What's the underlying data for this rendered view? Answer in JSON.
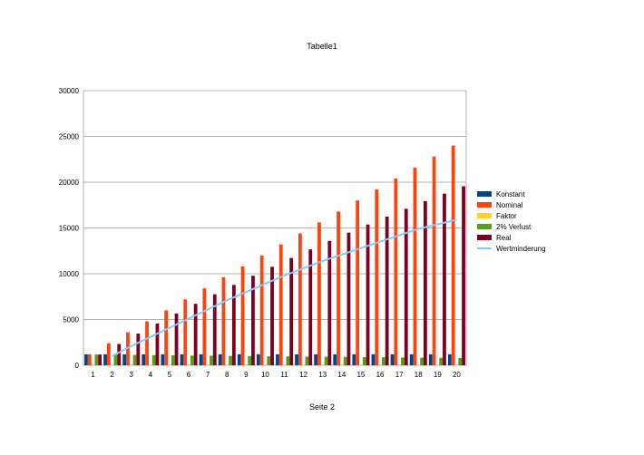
{
  "page": {
    "header": "Tabelle1",
    "footer": "Seite 2"
  },
  "chart_data": {
    "type": "bar",
    "title": "Tabelle1",
    "xlabel": "",
    "ylabel": "",
    "ylim": [
      0,
      30000
    ],
    "yticks": [
      0,
      5000,
      10000,
      15000,
      20000,
      25000,
      30000
    ],
    "grid": true,
    "legend_position": "right",
    "categories": [
      "1",
      "2",
      "3",
      "4",
      "5",
      "6",
      "7",
      "8",
      "9",
      "10",
      "11",
      "12",
      "13",
      "14",
      "15",
      "16",
      "17",
      "18",
      "19",
      "20"
    ],
    "series": [
      {
        "name": "Konstant",
        "kind": "bar",
        "color": "#004586",
        "values": [
          1200,
          1200,
          1200,
          1200,
          1200,
          1200,
          1200,
          1200,
          1200,
          1200,
          1200,
          1200,
          1200,
          1200,
          1200,
          1200,
          1200,
          1200,
          1200,
          1200
        ]
      },
      {
        "name": "Nominal",
        "kind": "bar",
        "color": "#ff420e",
        "values": [
          1200,
          2400,
          3600,
          4800,
          6000,
          7200,
          8400,
          9600,
          10800,
          12000,
          13200,
          14400,
          15600,
          16800,
          18000,
          19200,
          20400,
          21600,
          22800,
          24000
        ]
      },
      {
        "name": "Faktor",
        "kind": "bar",
        "color": "#ffd320",
        "values": [
          0,
          0,
          0,
          0,
          0,
          0,
          0,
          0,
          0,
          0,
          0,
          0,
          0,
          0,
          0,
          0,
          0,
          0,
          0,
          0
        ]
      },
      {
        "name": "2% Verlust",
        "kind": "bar",
        "color": "#579d1c",
        "values": [
          1176,
          1153,
          1130,
          1107,
          1085,
          1063,
          1042,
          1021,
          1001,
          981,
          961,
          942,
          923,
          905,
          887,
          869,
          852,
          835,
          818,
          802
        ]
      },
      {
        "name": "Real",
        "kind": "bar",
        "color": "#7e0021",
        "values": [
          1176,
          2329,
          3459,
          4566,
          5651,
          6714,
          7756,
          8777,
          9778,
          10759,
          11720,
          12662,
          13585,
          14490,
          15377,
          16246,
          17098,
          17933,
          18751,
          19553
        ]
      },
      {
        "name": "Wertminderung",
        "kind": "line",
        "color": "#83caff",
        "values": [
          null,
          1000,
          2100,
          3100,
          4100,
          5100,
          6100,
          7100,
          8000,
          8900,
          9800,
          10600,
          11400,
          12100,
          12800,
          13500,
          14200,
          14900,
          15400,
          15900
        ]
      }
    ]
  }
}
